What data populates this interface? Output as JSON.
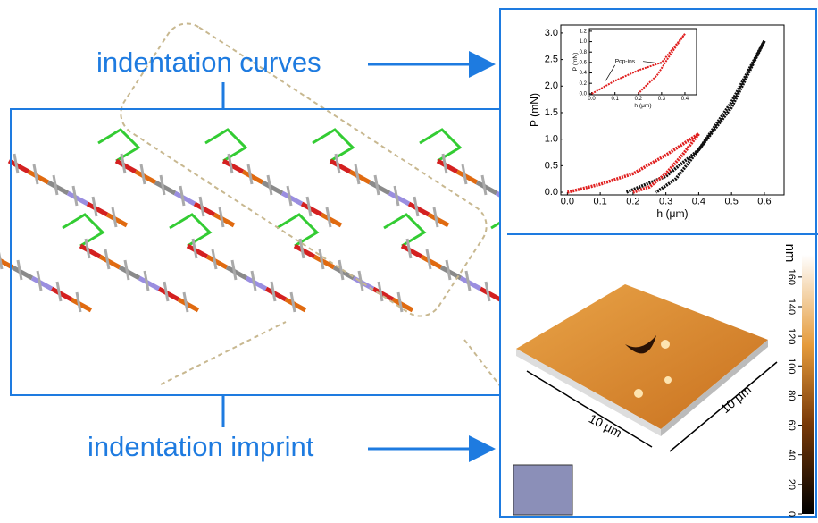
{
  "labels": {
    "top": "indentation curves",
    "bottom": "indentation imprint"
  },
  "chart_data": [
    {
      "type": "line",
      "xlabel": "h (μm)",
      "ylabel": "P (mN)",
      "xlim": [
        -0.02,
        0.66
      ],
      "ylim": [
        -0.05,
        3.15
      ],
      "xticks": [
        {
          "value": 0,
          "label": "0.0"
        },
        0.1,
        0.2,
        0.3,
        0.4,
        0.5,
        0.6
      ],
      "yticks": [
        {
          "value": 0,
          "label": "0.0"
        },
        0.5,
        {
          "value": 1,
          "label": "1.0"
        },
        1.5,
        {
          "value": 2,
          "label": "2.0"
        },
        2.5,
        {
          "value": 3,
          "label": "3.0"
        }
      ],
      "series": [
        {
          "color": "#111111",
          "x": [
            0.18,
            0.3,
            0.4,
            0.5,
            0.6
          ],
          "values": [
            0,
            0.3,
            0.8,
            1.6,
            2.85
          ]
        },
        {
          "color": "#111111",
          "x": [
            0.6,
            0.5,
            0.4,
            0.33,
            0.27
          ],
          "values": [
            2.85,
            1.7,
            0.8,
            0.25,
            0
          ]
        },
        {
          "color": "#e02020",
          "x": [
            0,
            0.1,
            0.2,
            0.3,
            0.4
          ],
          "values": [
            0,
            0.15,
            0.35,
            0.7,
            1.1
          ]
        },
        {
          "color": "#e02020",
          "x": [
            0.4,
            0.35,
            0.3,
            0.25,
            0.2
          ],
          "values": [
            1.1,
            0.7,
            0.35,
            0.1,
            0
          ]
        }
      ]
    },
    {
      "type": "line",
      "xlabel": "h (μm)",
      "ylabel": "P (mN)",
      "annotation": "Pop-ins",
      "xlim": [
        -0.01,
        0.45
      ],
      "ylim": [
        -0.02,
        1.25
      ],
      "xticks": [
        {
          "value": 0,
          "label": "0.0"
        },
        0.1,
        0.2,
        0.3,
        0.4
      ],
      "yticks": [
        {
          "value": 0,
          "label": "0.0"
        },
        0.2,
        0.4,
        0.6,
        0.8,
        {
          "value": 1,
          "label": "1.0"
        },
        1.2
      ],
      "series": [
        {
          "color": "#e02020",
          "x": [
            0,
            0.1,
            0.2,
            0.3,
            0.4
          ],
          "values": [
            0,
            0.25,
            0.45,
            0.6,
            1.15
          ]
        },
        {
          "color": "#e02020",
          "x": [
            0.4,
            0.33,
            0.28,
            0.22,
            0.2
          ],
          "values": [
            1.15,
            0.7,
            0.35,
            0.1,
            0
          ]
        }
      ]
    }
  ],
  "afm": {
    "x_label": "10 μm",
    "y_label": "10 μm",
    "colorbar": {
      "label": "nm",
      "lim": [
        0,
        175
      ],
      "ticks": [
        0,
        20,
        40,
        60,
        80,
        100,
        120,
        140,
        160
      ]
    }
  }
}
